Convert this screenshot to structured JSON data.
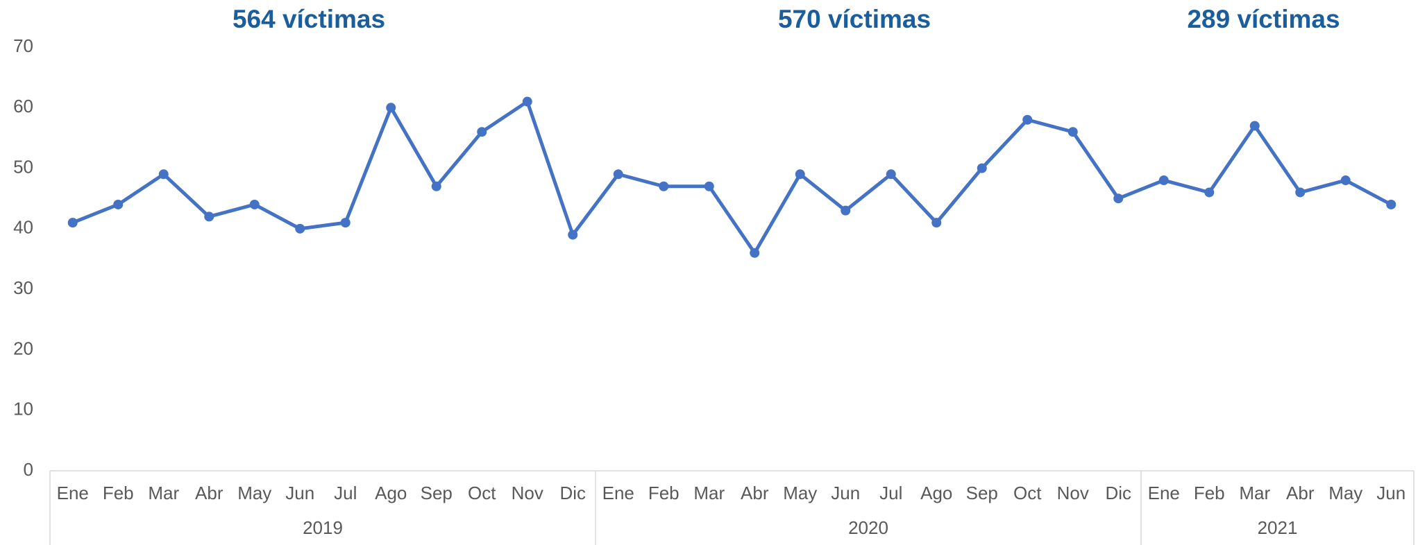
{
  "chart_data": {
    "type": "line",
    "groups": [
      {
        "label": "2019",
        "annotation": "564 víctimas",
        "categories": [
          "Ene",
          "Feb",
          "Mar",
          "Abr",
          "May",
          "Jun",
          "Jul",
          "Ago",
          "Sep",
          "Oct",
          "Nov",
          "Dic"
        ]
      },
      {
        "label": "2020",
        "annotation": "570 víctimas",
        "categories": [
          "Ene",
          "Feb",
          "Mar",
          "Abr",
          "May",
          "Jun",
          "Jul",
          "Ago",
          "Sep",
          "Oct",
          "Nov",
          "Dic"
        ]
      },
      {
        "label": "2021",
        "annotation": "289 víctimas",
        "categories": [
          "Ene",
          "Feb",
          "Mar",
          "Abr",
          "May",
          "Jun"
        ]
      }
    ],
    "values": [
      41,
      44,
      49,
      42,
      44,
      40,
      41,
      60,
      47,
      56,
      61,
      39,
      49,
      47,
      47,
      36,
      49,
      43,
      49,
      41,
      50,
      58,
      56,
      45,
      48,
      46,
      57,
      46,
      48,
      44
    ],
    "color": "#4472c4",
    "ylim": [
      0,
      70
    ],
    "yticks": [
      0,
      10,
      20,
      30,
      40,
      50,
      60,
      70
    ],
    "grid": false
  }
}
